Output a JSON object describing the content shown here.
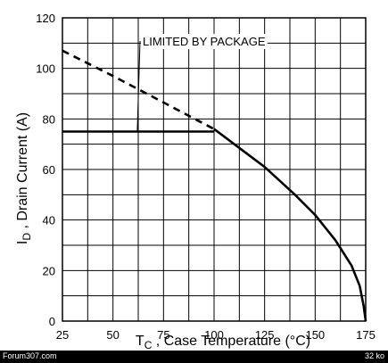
{
  "chart_data": {
    "type": "line",
    "title": "",
    "xlabel_main": "T",
    "xlabel_sub": "C",
    "xlabel_rest": " , Case Temperature (°C)",
    "ylabel_main": "I",
    "ylabel_sub": "D",
    "ylabel_rest": " , Drain Current (A)",
    "xlim": [
      25,
      175
    ],
    "ylim": [
      0,
      120
    ],
    "xticks": [
      25,
      50,
      75,
      100,
      125,
      150,
      175
    ],
    "yticks": [
      0,
      20,
      40,
      60,
      80,
      100,
      120
    ],
    "grid": true,
    "annotation": "LIMITED BY PACKAGE",
    "series": [
      {
        "style": "dashed",
        "x": [
          25,
          50,
          75,
          100
        ],
        "y": [
          107,
          97,
          86.5,
          76
        ]
      },
      {
        "style": "solid",
        "x": [
          25,
          50,
          75,
          100
        ],
        "y": [
          75,
          75,
          75,
          75
        ]
      },
      {
        "style": "solid",
        "x": [
          100,
          110,
          125,
          140,
          150,
          160,
          168,
          172,
          174,
          175
        ],
        "y": [
          76,
          70,
          61,
          50,
          42,
          32,
          22,
          14,
          6,
          0
        ]
      }
    ]
  },
  "footer": {
    "left_text": "Forum307.com",
    "right_text": "32 ko"
  }
}
